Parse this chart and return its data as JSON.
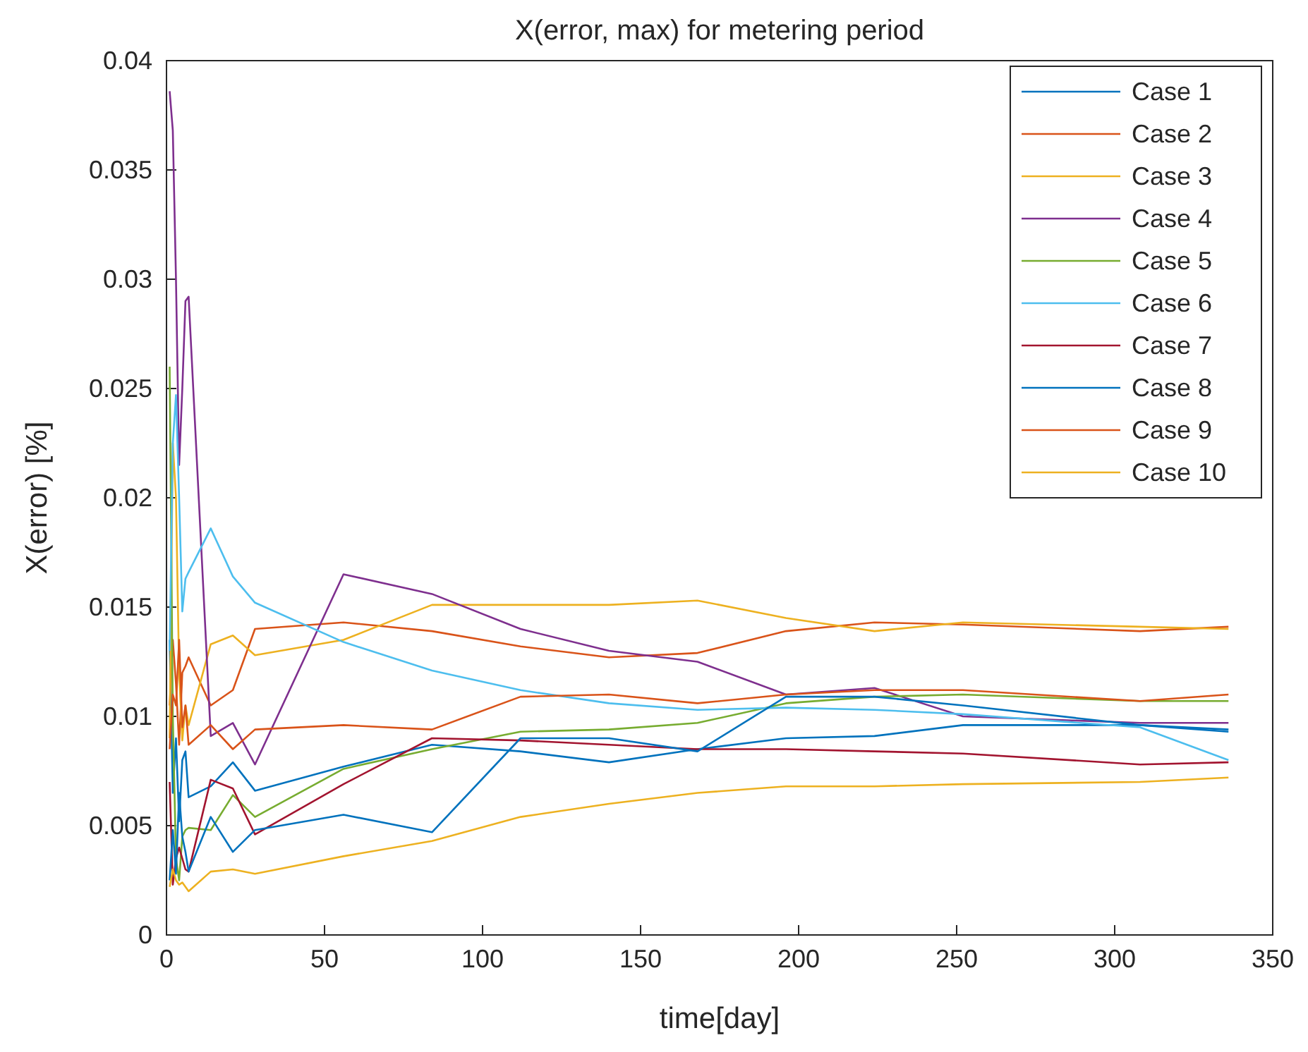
{
  "chart_data": {
    "type": "line",
    "title": "X(error, max) for metering period",
    "xlabel": "time[day]",
    "ylabel": "X(error) [%]",
    "x": [
      1,
      2,
      3,
      4,
      5,
      6,
      7,
      14,
      21,
      28,
      56,
      84,
      112,
      140,
      168,
      196,
      224,
      252,
      308,
      336
    ],
    "xlim": [
      0,
      350
    ],
    "xticks": [
      0,
      50,
      100,
      150,
      200,
      250,
      300,
      350
    ],
    "ylim": [
      0,
      0.04
    ],
    "yticks": [
      0,
      0.005,
      0.01,
      0.015,
      0.02,
      0.025,
      0.03,
      0.035,
      0.04
    ],
    "grid": false,
    "legend": "top right",
    "marker": "none",
    "line_style": "solid",
    "series": [
      {
        "name": "Case 1",
        "color": "#0072bd",
        "values": [
          0.0135,
          0.0065,
          0.009,
          0.0052,
          0.008,
          0.0084,
          0.0063,
          0.0068,
          0.0079,
          0.0066,
          0.0077,
          0.0087,
          0.0084,
          0.0079,
          0.0085,
          0.009,
          0.0091,
          0.0096,
          0.0096,
          0.0094
        ]
      },
      {
        "name": "Case 2",
        "color": "#d95319",
        "values": [
          0.0105,
          0.0135,
          0.0115,
          0.0087,
          0.012,
          0.0123,
          0.0127,
          0.0105,
          0.0112,
          0.014,
          0.0143,
          0.0139,
          0.0132,
          0.0127,
          0.0129,
          0.0139,
          0.0143,
          0.0142,
          0.0139,
          0.0141
        ]
      },
      {
        "name": "Case 3",
        "color": "#edb120",
        "values": [
          0.009,
          0.0225,
          0.02,
          0.012,
          0.0089,
          0.0105,
          0.0096,
          0.0133,
          0.0137,
          0.0128,
          0.0135,
          0.0151,
          0.0151,
          0.0151,
          0.0153,
          0.0145,
          0.0139,
          0.0143,
          0.0141,
          0.014
        ]
      },
      {
        "name": "Case 4",
        "color": "#7e2f8e",
        "values": [
          0.0386,
          0.0368,
          0.03,
          0.0215,
          0.025,
          0.029,
          0.0292,
          0.0091,
          0.0097,
          0.0078,
          0.0165,
          0.0156,
          0.014,
          0.013,
          0.0125,
          0.011,
          0.0113,
          0.01,
          0.0097,
          0.0097
        ]
      },
      {
        "name": "Case 5",
        "color": "#77ac30",
        "values": [
          0.026,
          0.01,
          0.0035,
          0.0025,
          0.0045,
          0.0048,
          0.0049,
          0.0048,
          0.0064,
          0.0054,
          0.0076,
          0.0085,
          0.0093,
          0.0094,
          0.0097,
          0.0106,
          0.0109,
          0.011,
          0.0107,
          0.0107
        ]
      },
      {
        "name": "Case 6",
        "color": "#4dbeee",
        "values": [
          0.013,
          0.0225,
          0.0247,
          0.02,
          0.0148,
          0.0163,
          0.0166,
          0.0186,
          0.0164,
          0.0152,
          0.0134,
          0.0121,
          0.0112,
          0.0106,
          0.0103,
          0.0104,
          0.0103,
          0.0101,
          0.0095,
          0.008
        ]
      },
      {
        "name": "Case 7",
        "color": "#a2142f",
        "values": [
          0.007,
          0.0023,
          0.0035,
          0.004,
          0.0035,
          0.003,
          0.0029,
          0.0071,
          0.0067,
          0.0046,
          0.0069,
          0.009,
          0.0089,
          0.0087,
          0.0085,
          0.0085,
          0.0084,
          0.0083,
          0.0078,
          0.0079
        ]
      },
      {
        "name": "Case 8",
        "color": "#0072bd",
        "values": [
          0.0025,
          0.0048,
          0.0028,
          0.0065,
          0.0045,
          0.0038,
          0.0029,
          0.0054,
          0.0038,
          0.0048,
          0.0055,
          0.0047,
          0.009,
          0.009,
          0.0084,
          0.0109,
          0.0109,
          0.0105,
          0.0096,
          0.0093
        ]
      },
      {
        "name": "Case 9",
        "color": "#d95319",
        "values": [
          0.0085,
          0.011,
          0.0105,
          0.0135,
          0.0095,
          0.0105,
          0.0087,
          0.0096,
          0.0085,
          0.0094,
          0.0096,
          0.0094,
          0.0109,
          0.011,
          0.0106,
          0.011,
          0.0112,
          0.0112,
          0.0107,
          0.011
        ]
      },
      {
        "name": "Case 10",
        "color": "#edb120",
        "values": [
          0.0022,
          0.003,
          0.0025,
          0.0023,
          0.0024,
          0.0022,
          0.002,
          0.0029,
          0.003,
          0.0028,
          0.0036,
          0.0043,
          0.0054,
          0.006,
          0.0065,
          0.0068,
          0.0068,
          0.0069,
          0.007,
          0.0072
        ]
      }
    ]
  }
}
